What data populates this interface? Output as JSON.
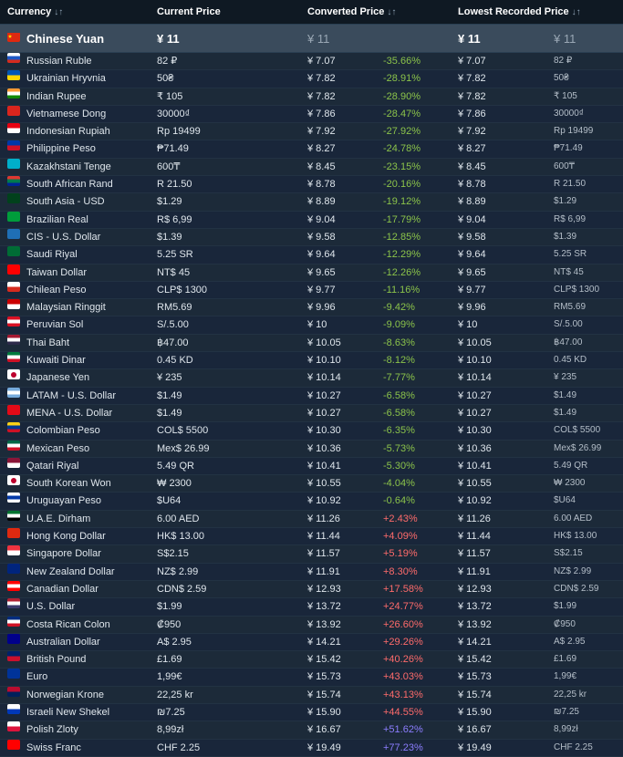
{
  "header": {
    "currency": "Currency",
    "current_price": "Current Price",
    "converted_price": "Converted Price",
    "lowest_price": "Lowest Recorded Price",
    "sort_icon": "↓↑"
  },
  "base": {
    "name": "Chinese Yuan",
    "current": "¥ 11",
    "converted": "¥ 11",
    "lowest": "¥ 11",
    "lowest_native": "¥ 11",
    "flag": "cn"
  },
  "rows": [
    {
      "name": "Russian Ruble",
      "current": "82 ₽",
      "converted": "¥ 7.07",
      "pct": "-35.66%",
      "lowest": "¥ 7.07",
      "native": "82 ₽",
      "flag": [
        "#ffffff",
        "#1c57c6",
        "#d52b1e"
      ]
    },
    {
      "name": "Ukrainian Hryvnia",
      "current": "50₴",
      "converted": "¥ 7.82",
      "pct": "-28.91%",
      "lowest": "¥ 7.82",
      "native": "50₴",
      "flag": [
        "#0057b7",
        "#ffd700"
      ]
    },
    {
      "name": "Indian Rupee",
      "current": "₹ 105",
      "converted": "¥ 7.82",
      "pct": "-28.90%",
      "lowest": "¥ 7.82",
      "native": "₹ 105",
      "flag": [
        "#ff9933",
        "#ffffff",
        "#138808"
      ]
    },
    {
      "name": "Vietnamese Dong",
      "current": "30000₫",
      "converted": "¥ 7.86",
      "pct": "-28.47%",
      "lowest": "¥ 7.86",
      "native": "30000₫",
      "flag": [
        "#da251d"
      ]
    },
    {
      "name": "Indonesian Rupiah",
      "current": "Rp 19499",
      "converted": "¥ 7.92",
      "pct": "-27.92%",
      "lowest": "¥ 7.92",
      "native": "Rp 19499",
      "flag": [
        "#e70011",
        "#ffffff"
      ]
    },
    {
      "name": "Philippine Peso",
      "current": "₱71.49",
      "converted": "¥ 8.27",
      "pct": "-24.78%",
      "lowest": "¥ 8.27",
      "native": "₱71.49",
      "flag": [
        "#0038a8",
        "#ce1126"
      ]
    },
    {
      "name": "Kazakhstani Tenge",
      "current": "600₸",
      "converted": "¥ 8.45",
      "pct": "-23.15%",
      "lowest": "¥ 8.45",
      "native": "600₸",
      "flag": [
        "#00afca"
      ]
    },
    {
      "name": "South African Rand",
      "current": "R 21.50",
      "converted": "¥ 8.78",
      "pct": "-20.16%",
      "lowest": "¥ 8.78",
      "native": "R 21.50",
      "flag": [
        "#de3831",
        "#007a4d",
        "#002395"
      ]
    },
    {
      "name": "South Asia - USD",
      "current": "$1.29",
      "converted": "¥ 8.89",
      "pct": "-19.12%",
      "lowest": "¥ 8.89",
      "native": "$1.29",
      "flag": [
        "#01411c"
      ]
    },
    {
      "name": "Brazilian Real",
      "current": "R$ 6,99",
      "converted": "¥ 9.04",
      "pct": "-17.79%",
      "lowest": "¥ 9.04",
      "native": "R$ 6,99",
      "flag": [
        "#009c3b"
      ]
    },
    {
      "name": "CIS - U.S. Dollar",
      "current": "$1.39",
      "converted": "¥ 9.58",
      "pct": "-12.85%",
      "lowest": "¥ 9.58",
      "native": "$1.39",
      "flag": [
        "#1f6fb5"
      ]
    },
    {
      "name": "Saudi Riyal",
      "current": "5.25 SR",
      "converted": "¥ 9.64",
      "pct": "-12.29%",
      "lowest": "¥ 9.64",
      "native": "5.25 SR",
      "flag": [
        "#006c35"
      ]
    },
    {
      "name": "Taiwan Dollar",
      "current": "NT$ 45",
      "converted": "¥ 9.65",
      "pct": "-12.26%",
      "lowest": "¥ 9.65",
      "native": "NT$ 45",
      "flag": [
        "#fe0000"
      ]
    },
    {
      "name": "Chilean Peso",
      "current": "CLP$ 1300",
      "converted": "¥ 9.77",
      "pct": "-11.16%",
      "lowest": "¥ 9.77",
      "native": "CLP$ 1300",
      "flag": [
        "#ffffff",
        "#d52b1e"
      ]
    },
    {
      "name": "Malaysian Ringgit",
      "current": "RM5.69",
      "converted": "¥ 9.96",
      "pct": "-9.42%",
      "lowest": "¥ 9.96",
      "native": "RM5.69",
      "flag": [
        "#cc0001",
        "#ffffff"
      ]
    },
    {
      "name": "Peruvian Sol",
      "current": "S/.5.00",
      "converted": "¥ 10",
      "pct": "-9.09%",
      "lowest": "¥ 10",
      "native": "S/.5.00",
      "flag": [
        "#d91023",
        "#ffffff",
        "#d91023"
      ]
    },
    {
      "name": "Thai Baht",
      "current": "฿47.00",
      "converted": "¥ 10.05",
      "pct": "-8.63%",
      "lowest": "¥ 10.05",
      "native": "฿47.00",
      "flag": [
        "#a51931",
        "#ffffff",
        "#2d2a4a"
      ]
    },
    {
      "name": "Kuwaiti Dinar",
      "current": "0.45 KD",
      "converted": "¥ 10.10",
      "pct": "-8.12%",
      "lowest": "¥ 10.10",
      "native": "0.45 KD",
      "flag": [
        "#007a3d",
        "#ffffff",
        "#ce1126"
      ]
    },
    {
      "name": "Japanese Yen",
      "current": "¥ 235",
      "converted": "¥ 10.14",
      "pct": "-7.77%",
      "lowest": "¥ 10.14",
      "native": "¥ 235",
      "flag": [
        "#ffffff"
      ]
    },
    {
      "name": "LATAM - U.S. Dollar",
      "current": "$1.49",
      "converted": "¥ 10.27",
      "pct": "-6.58%",
      "lowest": "¥ 10.27",
      "native": "$1.49",
      "flag": [
        "#75aadb",
        "#ffffff",
        "#75aadb"
      ]
    },
    {
      "name": "MENA - U.S. Dollar",
      "current": "$1.49",
      "converted": "¥ 10.27",
      "pct": "-6.58%",
      "lowest": "¥ 10.27",
      "native": "$1.49",
      "flag": [
        "#e30a17"
      ]
    },
    {
      "name": "Colombian Peso",
      "current": "COL$ 5500",
      "converted": "¥ 10.30",
      "pct": "-6.35%",
      "lowest": "¥ 10.30",
      "native": "COL$ 5500",
      "flag": [
        "#fcd116",
        "#003893",
        "#ce1126"
      ]
    },
    {
      "name": "Mexican Peso",
      "current": "Mex$ 26.99",
      "converted": "¥ 10.36",
      "pct": "-5.73%",
      "lowest": "¥ 10.36",
      "native": "Mex$ 26.99",
      "flag": [
        "#006847",
        "#ffffff",
        "#ce1126"
      ]
    },
    {
      "name": "Qatari Riyal",
      "current": "5.49 QR",
      "converted": "¥ 10.41",
      "pct": "-5.30%",
      "lowest": "¥ 10.41",
      "native": "5.49 QR",
      "flag": [
        "#8a1538",
        "#ffffff"
      ]
    },
    {
      "name": "South Korean Won",
      "current": "₩ 2300",
      "converted": "¥ 10.55",
      "pct": "-4.04%",
      "lowest": "¥ 10.55",
      "native": "₩ 2300",
      "flag": [
        "#ffffff"
      ]
    },
    {
      "name": "Uruguayan Peso",
      "current": "$U64",
      "converted": "¥ 10.92",
      "pct": "-0.64%",
      "lowest": "¥ 10.92",
      "native": "$U64",
      "flag": [
        "#ffffff",
        "#0038a8",
        "#ffffff"
      ]
    },
    {
      "name": "U.A.E. Dirham",
      "current": "6.00 AED",
      "converted": "¥ 11.26",
      "pct": "+2.43%",
      "lowest": "¥ 11.26",
      "native": "6.00 AED",
      "flag": [
        "#00732f",
        "#ffffff",
        "#000000"
      ]
    },
    {
      "name": "Hong Kong Dollar",
      "current": "HK$ 13.00",
      "converted": "¥ 11.44",
      "pct": "+4.09%",
      "lowest": "¥ 11.44",
      "native": "HK$ 13.00",
      "flag": [
        "#de2910"
      ]
    },
    {
      "name": "Singapore Dollar",
      "current": "S$2.15",
      "converted": "¥ 11.57",
      "pct": "+5.19%",
      "lowest": "¥ 11.57",
      "native": "S$2.15",
      "flag": [
        "#ef3340",
        "#ffffff"
      ]
    },
    {
      "name": "New Zealand Dollar",
      "current": "NZ$ 2.99",
      "converted": "¥ 11.91",
      "pct": "+8.30%",
      "lowest": "¥ 11.91",
      "native": "NZ$ 2.99",
      "flag": [
        "#00247d"
      ]
    },
    {
      "name": "Canadian Dollar",
      "current": "CDN$ 2.59",
      "converted": "¥ 12.93",
      "pct": "+17.58%",
      "lowest": "¥ 12.93",
      "native": "CDN$ 2.59",
      "flag": [
        "#ff0000",
        "#ffffff",
        "#ff0000"
      ]
    },
    {
      "name": "U.S. Dollar",
      "current": "$1.99",
      "converted": "¥ 13.72",
      "pct": "+24.77%",
      "lowest": "¥ 13.72",
      "native": "$1.99",
      "flag": [
        "#b22234",
        "#ffffff",
        "#3c3b6e"
      ]
    },
    {
      "name": "Costa Rican Colon",
      "current": "₡950",
      "converted": "¥ 13.92",
      "pct": "+26.60%",
      "lowest": "¥ 13.92",
      "native": "₡950",
      "flag": [
        "#002b7f",
        "#ffffff",
        "#ce1126"
      ]
    },
    {
      "name": "Australian Dollar",
      "current": "A$ 2.95",
      "converted": "¥ 14.21",
      "pct": "+29.26%",
      "lowest": "¥ 14.21",
      "native": "A$ 2.95",
      "flag": [
        "#00008b"
      ]
    },
    {
      "name": "British Pound",
      "current": "£1.69",
      "converted": "¥ 15.42",
      "pct": "+40.26%",
      "lowest": "¥ 15.42",
      "native": "£1.69",
      "flag": [
        "#012169",
        "#c8102e"
      ]
    },
    {
      "name": "Euro",
      "current": "1,99€",
      "converted": "¥ 15.73",
      "pct": "+43.03%",
      "lowest": "¥ 15.73",
      "native": "1,99€",
      "flag": [
        "#003399"
      ]
    },
    {
      "name": "Norwegian Krone",
      "current": "22,25 kr",
      "converted": "¥ 15.74",
      "pct": "+43.13%",
      "lowest": "¥ 15.74",
      "native": "22,25 kr",
      "flag": [
        "#ba0c2f",
        "#00205b"
      ]
    },
    {
      "name": "Israeli New Shekel",
      "current": "₪7.25",
      "converted": "¥ 15.90",
      "pct": "+44.55%",
      "lowest": "¥ 15.90",
      "native": "₪7.25",
      "flag": [
        "#ffffff",
        "#0038b8"
      ]
    },
    {
      "name": "Polish Zloty",
      "current": "8,99zł",
      "converted": "¥ 16.67",
      "pct": "+51.62%",
      "lowest": "¥ 16.67",
      "native": "8,99zł",
      "flag": [
        "#ffffff",
        "#dc143c"
      ]
    },
    {
      "name": "Swiss Franc",
      "current": "CHF 2.25",
      "converted": "¥ 19.49",
      "pct": "+77.23%",
      "lowest": "¥ 19.49",
      "native": "CHF 2.25",
      "flag": [
        "#ff0000"
      ]
    }
  ]
}
